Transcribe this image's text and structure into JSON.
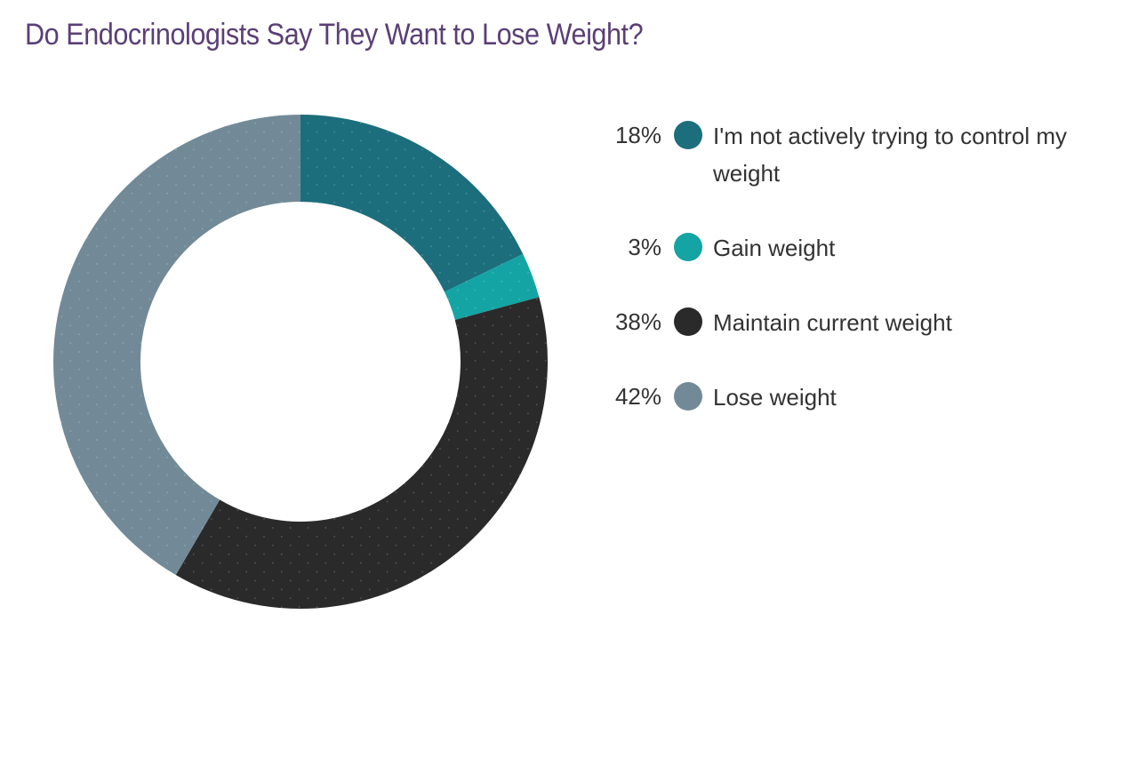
{
  "chart_data": {
    "type": "pie",
    "donut": true,
    "title": "Do Endocrinologists Say They Want to Lose Weight?",
    "legend_position": "right",
    "slices": [
      {
        "label": "I'm not actively trying to control my weight",
        "value": 18,
        "value_label": "18%",
        "color": "#1c6e7c"
      },
      {
        "label": "Gain weight",
        "value": 3,
        "value_label": "3%",
        "color": "#14a4a4"
      },
      {
        "label": "Maintain current weight",
        "value": 38,
        "value_label": "38%",
        "color": "#2a2a2a"
      },
      {
        "label": "Lose weight",
        "value": 42,
        "value_label": "42%",
        "color": "#728a98"
      }
    ]
  }
}
